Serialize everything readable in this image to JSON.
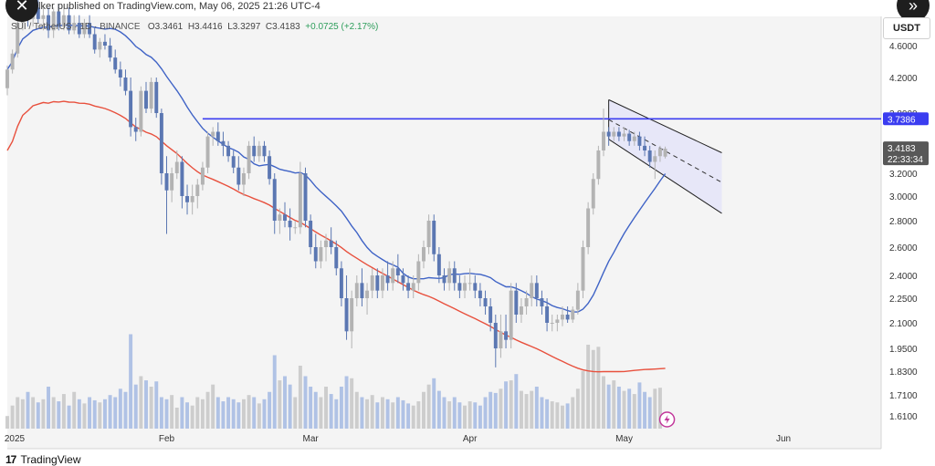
{
  "header": {
    "publisher_text": "elker published on TradingView.com, May 06, 2025 21:26 UTC-4"
  },
  "symbol_bar": {
    "symbol": "SUI / TetherUS · 1D · BINANCE",
    "open": "O3.3461",
    "high": "H3.4416",
    "low": "L3.3297",
    "close": "C3.4183",
    "change": "+0.0725 (+2.17%)"
  },
  "currency_label": "USDT",
  "branding": {
    "logo": "17",
    "name": "TradingView"
  },
  "buttons": {
    "close_icon": "✕",
    "forward_icon": "»"
  },
  "colors": {
    "up": "#b3b3b3",
    "down": "#5b77b2",
    "ma50": "#3f63c6",
    "ma200": "#e8503d",
    "resistance": "#3b3df0",
    "channel_fill": "#e4e4f8",
    "price_tag": "#585858",
    "volume_up": "#c9c9c9",
    "volume_down": "#a9bde3"
  },
  "chart_data": {
    "type": "candlestick",
    "title": "",
    "y_ticks": [
      4.6,
      4.2,
      3.8,
      3.4,
      3.2,
      3.0,
      2.8,
      2.6,
      2.4,
      2.25,
      2.1,
      1.95,
      1.83,
      1.71,
      1.61
    ],
    "y_tick_labels": [
      "4.6000",
      "4.2000",
      "3.8000",
      "3.4000",
      "3.2000",
      "3.0000",
      "2.8000",
      "2.6000",
      "2.4000",
      "2.2500",
      "2.1000",
      "1.9500",
      "1.8300",
      "1.7100",
      "1.6100"
    ],
    "x_tick_labels": [
      "2025",
      "Feb",
      "Mar",
      "Apr",
      "May",
      "Jun"
    ],
    "x_tick_dates": [
      "2025-01-01",
      "2025-02-01",
      "2025-03-01",
      "2025-04-01",
      "2025-05-01",
      "2025-06-01"
    ],
    "x_start_date": "2025-01-01",
    "visible_start": 0.0,
    "visible_end": 170.0,
    "resistance_level": 3.7386,
    "resistance_label": "3.7386",
    "last_price_label": "3.4183",
    "countdown_label": "22:33:34",
    "candles": [
      {
        "o": 4.08,
        "h": 4.35,
        "l": 4.0,
        "c": 4.3
      },
      {
        "o": 4.3,
        "h": 4.55,
        "l": 4.25,
        "c": 4.5
      },
      {
        "o": 4.5,
        "h": 4.95,
        "l": 4.45,
        "c": 4.9
      },
      {
        "o": 4.9,
        "h": 5.1,
        "l": 4.8,
        "c": 5.05
      },
      {
        "o": 5.05,
        "h": 5.2,
        "l": 4.85,
        "c": 4.95
      },
      {
        "o": 4.95,
        "h": 5.15,
        "l": 4.85,
        "c": 5.1
      },
      {
        "o": 5.1,
        "h": 5.2,
        "l": 4.9,
        "c": 4.95
      },
      {
        "o": 4.95,
        "h": 5.1,
        "l": 4.8,
        "c": 5.0
      },
      {
        "o": 5.0,
        "h": 5.1,
        "l": 4.7,
        "c": 4.8
      },
      {
        "o": 4.8,
        "h": 5.1,
        "l": 4.7,
        "c": 5.05
      },
      {
        "o": 5.05,
        "h": 5.15,
        "l": 4.8,
        "c": 4.85
      },
      {
        "o": 4.85,
        "h": 5.1,
        "l": 4.8,
        "c": 5.0
      },
      {
        "o": 5.0,
        "h": 5.1,
        "l": 4.75,
        "c": 4.8
      },
      {
        "o": 4.8,
        "h": 5.0,
        "l": 4.75,
        "c": 4.9
      },
      {
        "o": 4.9,
        "h": 5.0,
        "l": 4.7,
        "c": 4.75
      },
      {
        "o": 4.75,
        "h": 4.95,
        "l": 4.7,
        "c": 4.9
      },
      {
        "o": 4.9,
        "h": 5.0,
        "l": 4.7,
        "c": 4.75
      },
      {
        "o": 4.75,
        "h": 4.85,
        "l": 4.5,
        "c": 4.55
      },
      {
        "o": 4.55,
        "h": 4.7,
        "l": 4.45,
        "c": 4.65
      },
      {
        "o": 4.65,
        "h": 4.75,
        "l": 4.55,
        "c": 4.6
      },
      {
        "o": 4.6,
        "h": 4.7,
        "l": 4.4,
        "c": 4.45
      },
      {
        "o": 4.45,
        "h": 4.55,
        "l": 4.25,
        "c": 4.3
      },
      {
        "o": 4.3,
        "h": 4.4,
        "l": 4.1,
        "c": 4.2
      },
      {
        "o": 4.2,
        "h": 4.3,
        "l": 4.0,
        "c": 4.05
      },
      {
        "o": 4.05,
        "h": 4.2,
        "l": 3.55,
        "c": 3.65
      },
      {
        "o": 3.65,
        "h": 3.75,
        "l": 3.5,
        "c": 3.6
      },
      {
        "o": 3.6,
        "h": 4.1,
        "l": 3.55,
        "c": 4.05
      },
      {
        "o": 4.05,
        "h": 4.15,
        "l": 3.8,
        "c": 3.85
      },
      {
        "o": 3.85,
        "h": 4.2,
        "l": 3.8,
        "c": 4.15
      },
      {
        "o": 4.15,
        "h": 4.2,
        "l": 3.75,
        "c": 3.8
      },
      {
        "o": 3.8,
        "h": 3.85,
        "l": 3.1,
        "c": 3.2
      },
      {
        "o": 3.2,
        "h": 3.35,
        "l": 2.7,
        "c": 3.05
      },
      {
        "o": 3.05,
        "h": 3.25,
        "l": 2.95,
        "c": 3.2
      },
      {
        "o": 3.2,
        "h": 3.4,
        "l": 3.15,
        "c": 3.3
      },
      {
        "o": 3.3,
        "h": 3.35,
        "l": 2.9,
        "c": 3.0
      },
      {
        "o": 3.0,
        "h": 3.1,
        "l": 2.85,
        "c": 2.95
      },
      {
        "o": 2.95,
        "h": 3.1,
        "l": 2.85,
        "c": 3.0
      },
      {
        "o": 3.0,
        "h": 3.15,
        "l": 2.9,
        "c": 3.1
      },
      {
        "o": 3.1,
        "h": 3.3,
        "l": 3.05,
        "c": 3.25
      },
      {
        "o": 3.25,
        "h": 3.6,
        "l": 3.2,
        "c": 3.55
      },
      {
        "o": 3.55,
        "h": 3.65,
        "l": 3.45,
        "c": 3.6
      },
      {
        "o": 3.6,
        "h": 3.7,
        "l": 3.45,
        "c": 3.5
      },
      {
        "o": 3.5,
        "h": 3.6,
        "l": 3.35,
        "c": 3.45
      },
      {
        "o": 3.45,
        "h": 3.5,
        "l": 3.3,
        "c": 3.35
      },
      {
        "o": 3.35,
        "h": 3.4,
        "l": 3.2,
        "c": 3.25
      },
      {
        "o": 3.25,
        "h": 3.35,
        "l": 3.05,
        "c": 3.1
      },
      {
        "o": 3.1,
        "h": 3.25,
        "l": 3.0,
        "c": 3.2
      },
      {
        "o": 3.2,
        "h": 3.5,
        "l": 3.15,
        "c": 3.45
      },
      {
        "o": 3.45,
        "h": 3.55,
        "l": 3.3,
        "c": 3.35
      },
      {
        "o": 3.35,
        "h": 3.5,
        "l": 3.3,
        "c": 3.45
      },
      {
        "o": 3.45,
        "h": 3.5,
        "l": 3.3,
        "c": 3.35
      },
      {
        "o": 3.35,
        "h": 3.4,
        "l": 3.1,
        "c": 3.15
      },
      {
        "o": 3.15,
        "h": 3.2,
        "l": 2.7,
        "c": 2.8
      },
      {
        "o": 2.8,
        "h": 2.9,
        "l": 2.7,
        "c": 2.85
      },
      {
        "o": 2.85,
        "h": 2.95,
        "l": 2.75,
        "c": 2.8
      },
      {
        "o": 2.8,
        "h": 2.9,
        "l": 2.65,
        "c": 2.75
      },
      {
        "o": 2.75,
        "h": 2.8,
        "l": 2.7,
        "c": 2.75
      },
      {
        "o": 2.75,
        "h": 3.3,
        "l": 2.7,
        "c": 3.2
      },
      {
        "o": 3.2,
        "h": 3.25,
        "l": 2.75,
        "c": 2.8
      },
      {
        "o": 2.8,
        "h": 2.85,
        "l": 2.55,
        "c": 2.6
      },
      {
        "o": 2.6,
        "h": 2.7,
        "l": 2.45,
        "c": 2.5
      },
      {
        "o": 2.5,
        "h": 2.65,
        "l": 2.45,
        "c": 2.6
      },
      {
        "o": 2.6,
        "h": 2.7,
        "l": 2.5,
        "c": 2.65
      },
      {
        "o": 2.65,
        "h": 2.75,
        "l": 2.55,
        "c": 2.6
      },
      {
        "o": 2.6,
        "h": 2.65,
        "l": 2.4,
        "c": 2.45
      },
      {
        "o": 2.45,
        "h": 2.5,
        "l": 2.2,
        "c": 2.25
      },
      {
        "o": 2.25,
        "h": 2.4,
        "l": 2.0,
        "c": 2.05
      },
      {
        "o": 2.05,
        "h": 2.3,
        "l": 1.95,
        "c": 2.25
      },
      {
        "o": 2.25,
        "h": 2.4,
        "l": 2.2,
        "c": 2.35
      },
      {
        "o": 2.35,
        "h": 2.45,
        "l": 2.2,
        "c": 2.25
      },
      {
        "o": 2.25,
        "h": 2.35,
        "l": 2.15,
        "c": 2.3
      },
      {
        "o": 2.3,
        "h": 2.45,
        "l": 2.25,
        "c": 2.4
      },
      {
        "o": 2.4,
        "h": 2.45,
        "l": 2.25,
        "c": 2.3
      },
      {
        "o": 2.3,
        "h": 2.45,
        "l": 2.25,
        "c": 2.4
      },
      {
        "o": 2.4,
        "h": 2.5,
        "l": 2.3,
        "c": 2.35
      },
      {
        "o": 2.35,
        "h": 2.5,
        "l": 2.3,
        "c": 2.45
      },
      {
        "o": 2.45,
        "h": 2.55,
        "l": 2.35,
        "c": 2.4
      },
      {
        "o": 2.4,
        "h": 2.45,
        "l": 2.3,
        "c": 2.35
      },
      {
        "o": 2.35,
        "h": 2.4,
        "l": 2.25,
        "c": 2.3
      },
      {
        "o": 2.3,
        "h": 2.4,
        "l": 2.25,
        "c": 2.35
      },
      {
        "o": 2.35,
        "h": 2.55,
        "l": 2.3,
        "c": 2.5
      },
      {
        "o": 2.5,
        "h": 2.65,
        "l": 2.45,
        "c": 2.6
      },
      {
        "o": 2.6,
        "h": 2.85,
        "l": 2.55,
        "c": 2.8
      },
      {
        "o": 2.8,
        "h": 2.85,
        "l": 2.5,
        "c": 2.55
      },
      {
        "o": 2.55,
        "h": 2.6,
        "l": 2.35,
        "c": 2.4
      },
      {
        "o": 2.4,
        "h": 2.45,
        "l": 2.3,
        "c": 2.35
      },
      {
        "o": 2.35,
        "h": 2.5,
        "l": 2.3,
        "c": 2.45
      },
      {
        "o": 2.45,
        "h": 2.5,
        "l": 2.3,
        "c": 2.35
      },
      {
        "o": 2.35,
        "h": 2.4,
        "l": 2.25,
        "c": 2.3
      },
      {
        "o": 2.3,
        "h": 2.4,
        "l": 2.25,
        "c": 2.35
      },
      {
        "o": 2.35,
        "h": 2.45,
        "l": 2.3,
        "c": 2.35
      },
      {
        "o": 2.35,
        "h": 2.4,
        "l": 2.25,
        "c": 2.3
      },
      {
        "o": 2.3,
        "h": 2.35,
        "l": 2.2,
        "c": 2.25
      },
      {
        "o": 2.25,
        "h": 2.3,
        "l": 2.15,
        "c": 2.2
      },
      {
        "o": 2.2,
        "h": 2.25,
        "l": 2.05,
        "c": 2.1
      },
      {
        "o": 2.1,
        "h": 2.15,
        "l": 1.85,
        "c": 1.95
      },
      {
        "o": 1.95,
        "h": 2.15,
        "l": 1.9,
        "c": 2.05
      },
      {
        "o": 2.05,
        "h": 2.15,
        "l": 1.95,
        "c": 2.0
      },
      {
        "o": 2.0,
        "h": 2.35,
        "l": 1.95,
        "c": 2.3
      },
      {
        "o": 2.3,
        "h": 2.35,
        "l": 2.1,
        "c": 2.15
      },
      {
        "o": 2.15,
        "h": 2.25,
        "l": 2.1,
        "c": 2.2
      },
      {
        "o": 2.2,
        "h": 2.3,
        "l": 2.15,
        "c": 2.25
      },
      {
        "o": 2.25,
        "h": 2.4,
        "l": 2.2,
        "c": 2.35
      },
      {
        "o": 2.35,
        "h": 2.4,
        "l": 2.2,
        "c": 2.25
      },
      {
        "o": 2.25,
        "h": 2.3,
        "l": 2.15,
        "c": 2.2
      },
      {
        "o": 2.2,
        "h": 2.25,
        "l": 2.05,
        "c": 2.1
      },
      {
        "o": 2.1,
        "h": 2.15,
        "l": 2.05,
        "c": 2.1
      },
      {
        "o": 2.1,
        "h": 2.15,
        "l": 2.05,
        "c": 2.12
      },
      {
        "o": 2.12,
        "h": 2.2,
        "l": 2.08,
        "c": 2.15
      },
      {
        "o": 2.15,
        "h": 2.2,
        "l": 2.1,
        "c": 2.12
      },
      {
        "o": 2.12,
        "h": 2.2,
        "l": 2.1,
        "c": 2.18
      },
      {
        "o": 2.18,
        "h": 2.35,
        "l": 2.15,
        "c": 2.3
      },
      {
        "o": 2.3,
        "h": 2.65,
        "l": 2.25,
        "c": 2.6
      },
      {
        "o": 2.6,
        "h": 2.95,
        "l": 2.55,
        "c": 2.9
      },
      {
        "o": 2.9,
        "h": 3.2,
        "l": 2.85,
        "c": 3.15
      },
      {
        "o": 3.15,
        "h": 3.45,
        "l": 3.1,
        "c": 3.4
      },
      {
        "o": 3.4,
        "h": 3.85,
        "l": 3.35,
        "c": 3.6
      },
      {
        "o": 3.6,
        "h": 3.65,
        "l": 3.45,
        "c": 3.55
      },
      {
        "o": 3.55,
        "h": 3.65,
        "l": 3.5,
        "c": 3.6
      },
      {
        "o": 3.6,
        "h": 3.65,
        "l": 3.5,
        "c": 3.55
      },
      {
        "o": 3.55,
        "h": 3.65,
        "l": 3.5,
        "c": 3.58
      },
      {
        "o": 3.58,
        "h": 3.62,
        "l": 3.45,
        "c": 3.5
      },
      {
        "o": 3.5,
        "h": 3.6,
        "l": 3.45,
        "c": 3.55
      },
      {
        "o": 3.55,
        "h": 3.6,
        "l": 3.4,
        "c": 3.45
      },
      {
        "o": 3.45,
        "h": 3.55,
        "l": 3.35,
        "c": 3.4
      },
      {
        "o": 3.4,
        "h": 3.45,
        "l": 3.25,
        "c": 3.3
      },
      {
        "o": 3.3,
        "h": 3.4,
        "l": 3.15,
        "c": 3.35
      },
      {
        "o": 3.35,
        "h": 3.45,
        "l": 3.3,
        "c": 3.42
      },
      {
        "o": 3.346,
        "h": 3.4416,
        "l": 3.3297,
        "c": 3.4183
      }
    ],
    "volumes": [
      0.12,
      0.22,
      0.3,
      0.28,
      0.35,
      0.3,
      0.25,
      0.28,
      0.4,
      0.3,
      0.26,
      0.33,
      0.22,
      0.35,
      0.28,
      0.24,
      0.3,
      0.27,
      0.25,
      0.28,
      0.32,
      0.3,
      0.38,
      0.35,
      0.9,
      0.42,
      0.5,
      0.46,
      0.4,
      0.45,
      0.3,
      0.28,
      0.32,
      0.2,
      0.3,
      0.25,
      0.22,
      0.3,
      0.28,
      0.35,
      0.42,
      0.3,
      0.26,
      0.3,
      0.28,
      0.25,
      0.28,
      0.32,
      0.3,
      0.24,
      0.28,
      0.35,
      0.7,
      0.46,
      0.5,
      0.42,
      0.3,
      0.6,
      0.5,
      0.4,
      0.35,
      0.3,
      0.4,
      0.33,
      0.28,
      0.4,
      0.5,
      0.48,
      0.35,
      0.3,
      0.28,
      0.32,
      0.25,
      0.3,
      0.28,
      0.25,
      0.3,
      0.27,
      0.24,
      0.22,
      0.26,
      0.35,
      0.42,
      0.48,
      0.36,
      0.3,
      0.26,
      0.3,
      0.25,
      0.22,
      0.26,
      0.25,
      0.22,
      0.3,
      0.35,
      0.34,
      0.38,
      0.45,
      0.46,
      0.52,
      0.36,
      0.33,
      0.36,
      0.4,
      0.3,
      0.28,
      0.26,
      0.25,
      0.22,
      0.24,
      0.3,
      0.38,
      0.55,
      0.8,
      0.75,
      0.78,
      0.5,
      0.42,
      0.46,
      0.4,
      0.36,
      0.38,
      0.33,
      0.44,
      0.35,
      0.3,
      0.38,
      0.39
    ]
  }
}
